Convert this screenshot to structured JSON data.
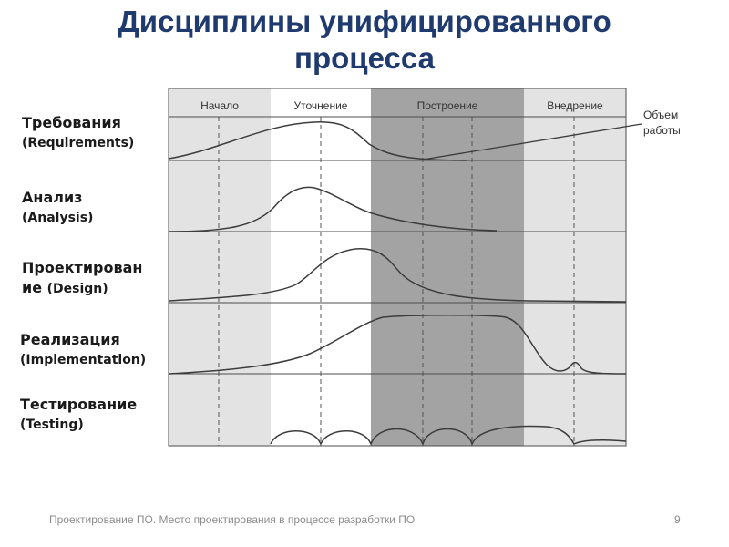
{
  "title": "Дисциплины унифицированного процесса",
  "phases": [
    "Начало",
    "Уточнение",
    "Построение",
    "Внедрение"
  ],
  "annotation": {
    "line1": "Объем",
    "line2": "работы"
  },
  "disciplines": [
    {
      "name": "Требования",
      "english": "(Requirements)"
    },
    {
      "name": "Анализ",
      "english": "(Analysis)"
    },
    {
      "name": "Проектирован ие",
      "english": "(Design)"
    },
    {
      "name": "Реализация",
      "english": "(Implementation)"
    },
    {
      "name": "Тестирование",
      "english": "(Testing)"
    }
  ],
  "footer": "Проектирование ПО. Место проектирования в процессе разработки ПО",
  "page_number": "9",
  "colors": {
    "title": "#1f3a6e",
    "phase_light": "#e3e3e3",
    "phase_dark": "#a3a3a3",
    "curve": "#3c3c3c",
    "grid": "#4d4d4d"
  }
}
